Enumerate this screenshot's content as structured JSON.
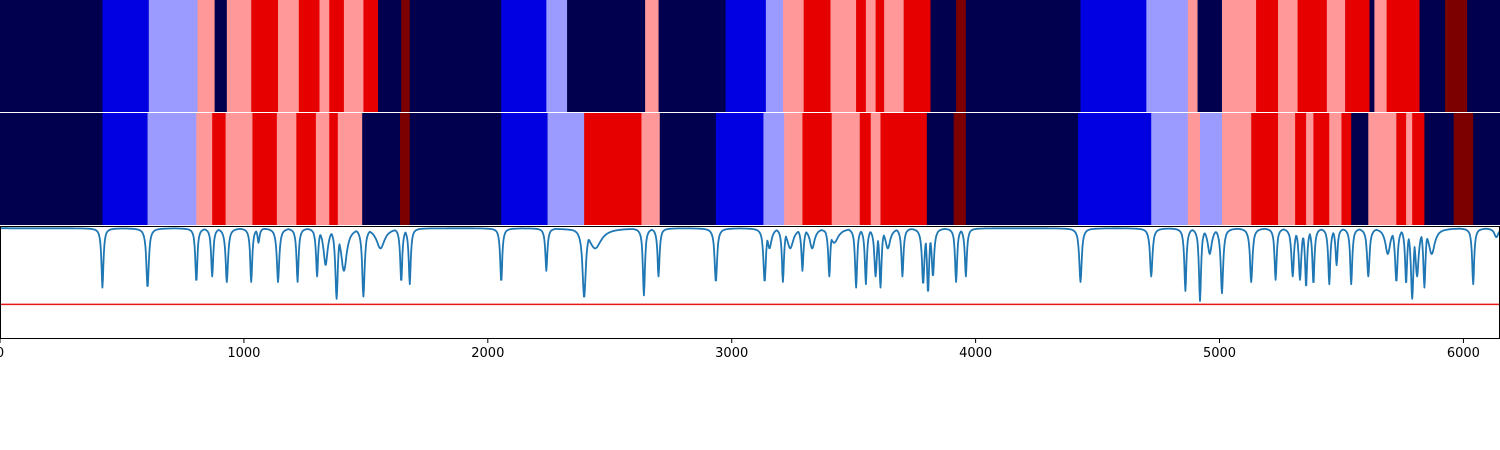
{
  "palette": {
    "0": "#00004e",
    "1": "#0000e0",
    "2": "#9a9aff",
    "3": "#ff9999",
    "4": "#e60000",
    "5": "#7d0000"
  },
  "colors": {
    "line": "#1f77b4",
    "threshold": "#e6191a",
    "axes": "#000000",
    "separator": "#ffffff"
  },
  "chart_data": {
    "type": "heatmap",
    "title": "",
    "xlabel": "",
    "ylabel": "",
    "xlim": [
      0,
      6150
    ],
    "xticks": [
      0,
      1000,
      2000,
      3000,
      4000,
      5000,
      6000
    ],
    "xtick_labels": [
      "0",
      "1000",
      "2000",
      "3000",
      "4000",
      "5000",
      "6000"
    ],
    "grid": false,
    "legend": "none",
    "segment_rows": [
      {
        "segments": [
          [
            0,
            420,
            0
          ],
          [
            420,
            610,
            1
          ],
          [
            610,
            810,
            2
          ],
          [
            810,
            880,
            3
          ],
          [
            880,
            930,
            0
          ],
          [
            930,
            1030,
            3
          ],
          [
            1030,
            1140,
            4
          ],
          [
            1140,
            1225,
            3
          ],
          [
            1225,
            1310,
            4
          ],
          [
            1310,
            1350,
            3
          ],
          [
            1350,
            1410,
            4
          ],
          [
            1410,
            1490,
            3
          ],
          [
            1490,
            1550,
            4
          ],
          [
            1550,
            1645,
            0
          ],
          [
            1645,
            1680,
            5
          ],
          [
            1680,
            2055,
            0
          ],
          [
            2055,
            2240,
            1
          ],
          [
            2240,
            2325,
            2
          ],
          [
            2325,
            2645,
            0
          ],
          [
            2645,
            2700,
            3
          ],
          [
            2700,
            2975,
            0
          ],
          [
            2975,
            3140,
            1
          ],
          [
            3140,
            3210,
            2
          ],
          [
            3210,
            3295,
            3
          ],
          [
            3295,
            3405,
            4
          ],
          [
            3405,
            3510,
            3
          ],
          [
            3510,
            3550,
            4
          ],
          [
            3550,
            3590,
            3
          ],
          [
            3590,
            3625,
            4
          ],
          [
            3625,
            3705,
            3
          ],
          [
            3705,
            3815,
            4
          ],
          [
            3815,
            3920,
            0
          ],
          [
            3920,
            3960,
            5
          ],
          [
            3960,
            4430,
            0
          ],
          [
            4430,
            4700,
            1
          ],
          [
            4700,
            4870,
            2
          ],
          [
            4870,
            4910,
            3
          ],
          [
            4910,
            5010,
            0
          ],
          [
            5010,
            5150,
            3
          ],
          [
            5150,
            5240,
            4
          ],
          [
            5240,
            5320,
            3
          ],
          [
            5320,
            5440,
            4
          ],
          [
            5440,
            5515,
            3
          ],
          [
            5515,
            5615,
            4
          ],
          [
            5615,
            5635,
            0
          ],
          [
            5635,
            5685,
            3
          ],
          [
            5685,
            5820,
            4
          ],
          [
            5820,
            5925,
            0
          ],
          [
            5925,
            6015,
            5
          ],
          [
            6015,
            6150,
            0
          ]
        ]
      },
      {
        "segments": [
          [
            0,
            420,
            0
          ],
          [
            420,
            605,
            1
          ],
          [
            605,
            805,
            2
          ],
          [
            805,
            870,
            3
          ],
          [
            870,
            925,
            4
          ],
          [
            925,
            1035,
            3
          ],
          [
            1035,
            1135,
            4
          ],
          [
            1135,
            1215,
            3
          ],
          [
            1215,
            1295,
            4
          ],
          [
            1295,
            1350,
            3
          ],
          [
            1350,
            1385,
            4
          ],
          [
            1385,
            1485,
            3
          ],
          [
            1485,
            1640,
            0
          ],
          [
            1640,
            1680,
            5
          ],
          [
            1680,
            2055,
            0
          ],
          [
            2055,
            2245,
            1
          ],
          [
            2245,
            2395,
            2
          ],
          [
            2395,
            2630,
            4
          ],
          [
            2630,
            2705,
            3
          ],
          [
            2705,
            2935,
            0
          ],
          [
            2935,
            3130,
            1
          ],
          [
            3130,
            3215,
            2
          ],
          [
            3215,
            3290,
            3
          ],
          [
            3290,
            3410,
            4
          ],
          [
            3410,
            3525,
            3
          ],
          [
            3525,
            3570,
            4
          ],
          [
            3570,
            3610,
            3
          ],
          [
            3610,
            3700,
            4
          ],
          [
            3700,
            3800,
            4
          ],
          [
            3800,
            3910,
            0
          ],
          [
            3910,
            3960,
            5
          ],
          [
            3960,
            4420,
            0
          ],
          [
            4420,
            4720,
            1
          ],
          [
            4720,
            4870,
            2
          ],
          [
            4870,
            4920,
            3
          ],
          [
            4920,
            5010,
            2
          ],
          [
            5010,
            5130,
            3
          ],
          [
            5130,
            5240,
            4
          ],
          [
            5240,
            5310,
            3
          ],
          [
            5310,
            5355,
            4
          ],
          [
            5355,
            5385,
            3
          ],
          [
            5385,
            5450,
            4
          ],
          [
            5450,
            5500,
            3
          ],
          [
            5500,
            5540,
            4
          ],
          [
            5540,
            5610,
            0
          ],
          [
            5610,
            5725,
            3
          ],
          [
            5725,
            5765,
            4
          ],
          [
            5765,
            5790,
            3
          ],
          [
            5790,
            5840,
            4
          ],
          [
            5840,
            5960,
            0
          ],
          [
            5960,
            6040,
            5
          ],
          [
            6040,
            6150,
            0
          ]
        ]
      }
    ],
    "line_series": {
      "baseline": 0.98,
      "threshold": 0.3,
      "ylim": [
        0,
        1
      ],
      "dips": [
        [
          420,
          0.45,
          5
        ],
        [
          605,
          0.45,
          6
        ],
        [
          805,
          0.5,
          5
        ],
        [
          870,
          0.55,
          5
        ],
        [
          930,
          0.5,
          6
        ],
        [
          1030,
          0.5,
          5
        ],
        [
          1060,
          0.85,
          5
        ],
        [
          1140,
          0.5,
          6
        ],
        [
          1220,
          0.5,
          5
        ],
        [
          1300,
          0.55,
          5
        ],
        [
          1335,
          0.65,
          10
        ],
        [
          1380,
          0.35,
          6
        ],
        [
          1410,
          0.6,
          14
        ],
        [
          1490,
          0.37,
          6
        ],
        [
          1560,
          0.8,
          20
        ],
        [
          1645,
          0.5,
          5
        ],
        [
          1680,
          0.48,
          5
        ],
        [
          2055,
          0.5,
          5
        ],
        [
          2240,
          0.6,
          5
        ],
        [
          2395,
          0.36,
          8
        ],
        [
          2440,
          0.8,
          30
        ],
        [
          2640,
          0.38,
          5
        ],
        [
          2700,
          0.55,
          5
        ],
        [
          2935,
          0.5,
          6
        ],
        [
          3135,
          0.5,
          6
        ],
        [
          3155,
          0.8,
          10
        ],
        [
          3210,
          0.5,
          5
        ],
        [
          3240,
          0.8,
          15
        ],
        [
          3290,
          0.6,
          5
        ],
        [
          3330,
          0.8,
          12
        ],
        [
          3400,
          0.55,
          5
        ],
        [
          3420,
          0.85,
          20
        ],
        [
          3510,
          0.45,
          5
        ],
        [
          3550,
          0.48,
          5
        ],
        [
          3590,
          0.55,
          6
        ],
        [
          3610,
          0.45,
          5
        ],
        [
          3640,
          0.8,
          12
        ],
        [
          3700,
          0.55,
          5
        ],
        [
          3785,
          0.48,
          6
        ],
        [
          3805,
          0.4,
          5
        ],
        [
          3825,
          0.55,
          6
        ],
        [
          3920,
          0.5,
          5
        ],
        [
          3960,
          0.55,
          5
        ],
        [
          4430,
          0.5,
          6
        ],
        [
          4720,
          0.55,
          6
        ],
        [
          4860,
          0.42,
          5
        ],
        [
          4920,
          0.33,
          5
        ],
        [
          4960,
          0.75,
          10
        ],
        [
          5010,
          0.4,
          6
        ],
        [
          5130,
          0.5,
          6
        ],
        [
          5230,
          0.52,
          5
        ],
        [
          5300,
          0.55,
          6
        ],
        [
          5330,
          0.52,
          6
        ],
        [
          5355,
          0.45,
          5
        ],
        [
          5385,
          0.48,
          5
        ],
        [
          5450,
          0.48,
          5
        ],
        [
          5480,
          0.65,
          5
        ],
        [
          5540,
          0.48,
          5
        ],
        [
          5610,
          0.55,
          6
        ],
        [
          5690,
          0.75,
          12
        ],
        [
          5725,
          0.5,
          6
        ],
        [
          5765,
          0.48,
          5
        ],
        [
          5790,
          0.35,
          6
        ],
        [
          5810,
          0.55,
          8
        ],
        [
          5840,
          0.45,
          5
        ],
        [
          5870,
          0.75,
          15
        ],
        [
          6040,
          0.48,
          5
        ],
        [
          6135,
          0.9,
          10
        ]
      ]
    }
  }
}
